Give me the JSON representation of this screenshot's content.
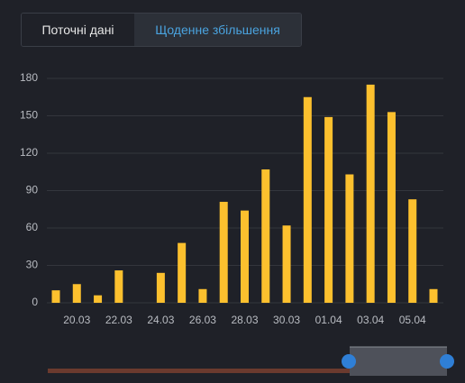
{
  "tabs": [
    "Поточні дані",
    "Щоденне збільшення"
  ],
  "chart_data": {
    "type": "bar",
    "categories": [
      null,
      "20.03",
      null,
      "22.03",
      null,
      "24.03",
      null,
      "26.03",
      null,
      "28.03",
      null,
      "30.03",
      null,
      "01.04",
      null,
      "03.04",
      null,
      "05.04",
      null
    ],
    "values": [
      10,
      15,
      6,
      26,
      0,
      24,
      48,
      11,
      81,
      74,
      107,
      62,
      165,
      149,
      103,
      175,
      153,
      83,
      11
    ],
    "color": "#fcc02e",
    "ylim": [
      0,
      180
    ],
    "yticks": [
      0,
      30,
      60,
      90,
      120,
      150,
      180
    ],
    "grid": true
  }
}
